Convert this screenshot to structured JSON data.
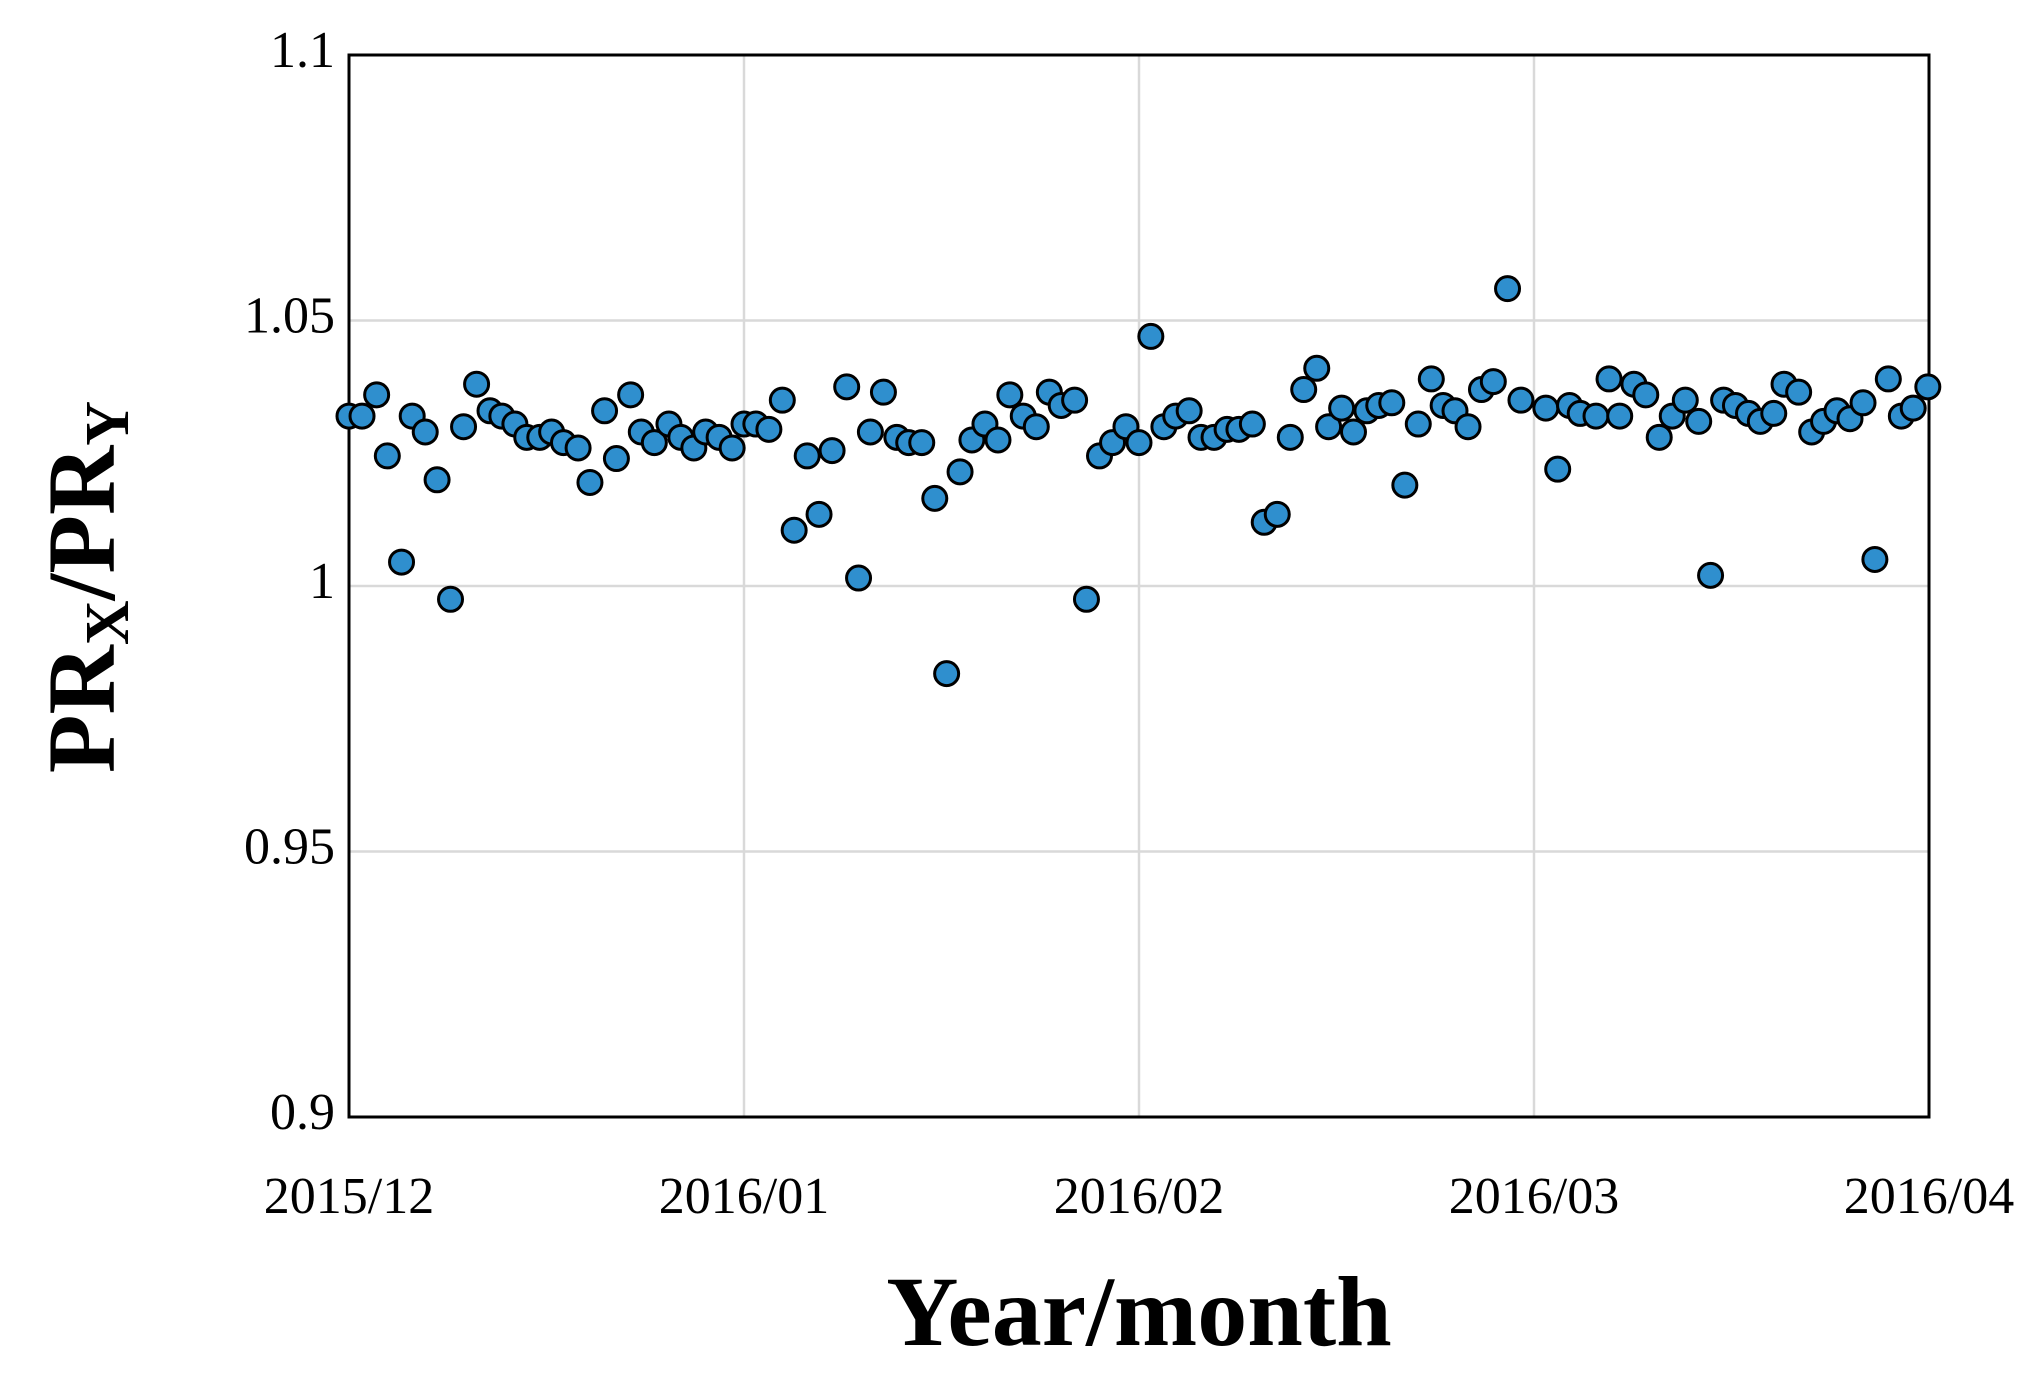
{
  "chart_data": {
    "type": "scatter",
    "xlabel": "Year/month",
    "ylabel": [
      "PR",
      "X",
      "/PR",
      "Y"
    ],
    "color": "#2f8fce",
    "grid": true,
    "xlim": [
      0,
      4
    ],
    "xticks": [
      {
        "value": 0,
        "label": "2015/12"
      },
      {
        "value": 1,
        "label": "2016/01"
      },
      {
        "value": 2,
        "label": "2016/02"
      },
      {
        "value": 3,
        "label": "2016/03"
      },
      {
        "value": 4,
        "label": "2016/04"
      }
    ],
    "ylim": [
      0.9,
      1.1
    ],
    "yticks": [
      0.9,
      0.95,
      1,
      1.05,
      1.1
    ],
    "x": [
      0,
      0.033,
      0.07,
      0.097,
      0.133,
      0.16,
      0.193,
      0.223,
      0.257,
      0.29,
      0.323,
      0.357,
      0.387,
      0.42,
      0.45,
      0.483,
      0.513,
      0.543,
      0.58,
      0.61,
      0.647,
      0.677,
      0.713,
      0.74,
      0.773,
      0.81,
      0.84,
      0.873,
      0.903,
      0.937,
      0.97,
      1,
      1.03,
      1.063,
      1.097,
      1.127,
      1.16,
      1.19,
      1.223,
      1.26,
      1.29,
      1.32,
      1.353,
      1.387,
      1.417,
      1.45,
      1.483,
      1.513,
      1.547,
      1.577,
      1.61,
      1.643,
      1.673,
      1.707,
      1.74,
      1.773,
      1.803,
      1.837,
      1.867,
      1.9,
      1.933,
      1.967,
      2,
      2.03,
      2.063,
      2.093,
      2.127,
      2.157,
      2.19,
      2.223,
      2.253,
      2.287,
      2.317,
      2.35,
      2.383,
      2.417,
      2.45,
      2.48,
      2.513,
      2.543,
      2.577,
      2.607,
      2.64,
      2.673,
      2.707,
      2.74,
      2.77,
      2.8,
      2.833,
      2.867,
      2.897,
      2.933,
      2.967,
      3.03,
      3.06,
      3.09,
      3.117,
      3.157,
      3.19,
      3.217,
      3.253,
      3.283,
      3.317,
      3.35,
      3.383,
      3.417,
      3.447,
      3.48,
      3.51,
      3.543,
      3.573,
      3.607,
      3.633,
      3.67,
      3.703,
      3.733,
      3.767,
      3.8,
      3.833,
      3.863,
      3.897,
      3.93,
      3.96,
      3.997
    ],
    "values": [
      1.032,
      1.032,
      1.036,
      1.0245,
      1.0045,
      1.032,
      1.029,
      1.02,
      0.9975,
      1.03,
      1.038,
      1.033,
      1.032,
      1.0305,
      1.028,
      1.028,
      1.029,
      1.027,
      1.026,
      1.0195,
      1.033,
      1.024,
      1.036,
      1.029,
      1.027,
      1.0305,
      1.028,
      1.026,
      1.029,
      1.028,
      1.026,
      1.0305,
      1.0305,
      1.0295,
      1.035,
      1.0105,
      1.0245,
      1.0135,
      1.0255,
      1.0375,
      1.0015,
      1.029,
      1.0365,
      1.028,
      1.027,
      1.027,
      1.0165,
      0.9835,
      1.0215,
      1.0275,
      1.0305,
      1.0275,
      1.036,
      1.032,
      1.03,
      1.0365,
      1.034,
      1.035,
      0.9975,
      1.0245,
      1.027,
      1.03,
      1.027,
      1.047,
      1.03,
      1.032,
      1.033,
      1.028,
      1.028,
      1.0295,
      1.0295,
      1.0305,
      1.012,
      1.0135,
      1.028,
      1.037,
      1.041,
      1.03,
      1.0335,
      1.029,
      1.033,
      1.034,
      1.0345,
      1.019,
      1.0305,
      1.039,
      1.034,
      1.033,
      1.03,
      1.037,
      1.0385,
      1.056,
      1.035,
      1.0335,
      1.022,
      1.034,
      1.0325,
      1.032,
      1.039,
      1.032,
      1.038,
      1.036,
      1.028,
      1.032,
      1.035,
      1.031,
      1.002,
      1.035,
      1.034,
      1.0325,
      1.031,
      1.0325,
      1.038,
      1.0365,
      1.029,
      1.031,
      1.033,
      1.0315,
      1.0345,
      1.005,
      1.039,
      1.032,
      1.0335,
      1.0375
    ]
  }
}
